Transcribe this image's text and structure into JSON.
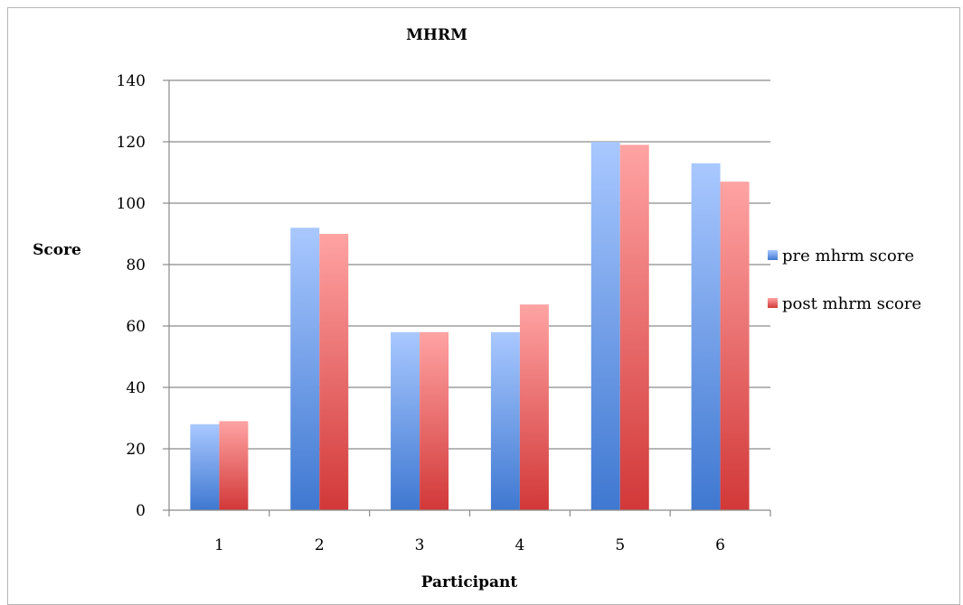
{
  "chart_data": {
    "type": "bar",
    "title": "MHRM",
    "xlabel": "Participant",
    "ylabel": "Score",
    "categories": [
      "1",
      "2",
      "3",
      "4",
      "5",
      "6"
    ],
    "series": [
      {
        "name": "pre mhrm score",
        "values": [
          28,
          92,
          58,
          58,
          120,
          113
        ],
        "color": "#5b8fe0"
      },
      {
        "name": "post mhrm score",
        "values": [
          29,
          90,
          58,
          67,
          119,
          107
        ],
        "color": "#e36464"
      }
    ],
    "ylim": [
      0,
      140
    ],
    "yticks": [
      "0",
      "20",
      "40",
      "60",
      "80",
      "100",
      "120",
      "140"
    ],
    "grid": true,
    "legend_position": "right"
  }
}
